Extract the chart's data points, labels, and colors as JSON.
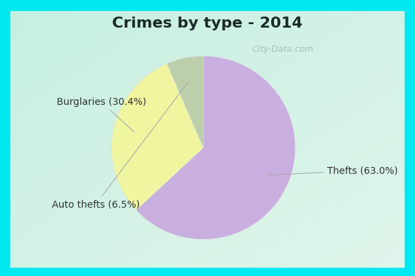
{
  "title": "Crimes by type - 2014",
  "slices": [
    {
      "label": "Thefts (63.0%)",
      "value": 63.0,
      "color": "#c9aee0"
    },
    {
      "label": "Burglaries (30.4%)",
      "value": 30.4,
      "color": "#f0f5a0"
    },
    {
      "label": "Auto thefts (6.5%)",
      "value": 6.5,
      "color": "#bccfaa"
    }
  ],
  "border_color": "#00e8f0",
  "border_width": 8,
  "background_color_tl": "#c8ede4",
  "background_color_br": "#e8f8f0",
  "title_fontsize": 16,
  "title_color": "#1a2a2a",
  "label_color": "#333333",
  "label_fontsize": 10,
  "startangle": 90,
  "watermark": "City-Data.com"
}
